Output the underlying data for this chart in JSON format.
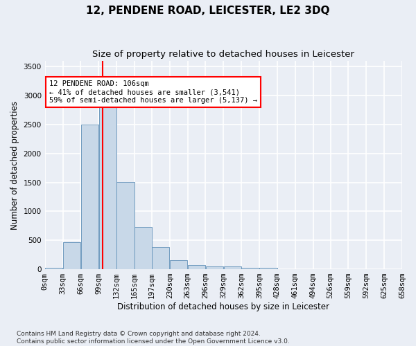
{
  "title": "12, PENDENE ROAD, LEICESTER, LE2 3DQ",
  "subtitle": "Size of property relative to detached houses in Leicester",
  "xlabel": "Distribution of detached houses by size in Leicester",
  "ylabel": "Number of detached properties",
  "footer_line1": "Contains HM Land Registry data © Crown copyright and database right 2024.",
  "footer_line2": "Contains public sector information licensed under the Open Government Licence v3.0.",
  "bar_bins": [
    0,
    33,
    66,
    99,
    132,
    165,
    197,
    230,
    263,
    296,
    329,
    362,
    395,
    428,
    461,
    494,
    526,
    559,
    592,
    625,
    658
  ],
  "bar_labels": [
    "0sqm",
    "33sqm",
    "66sqm",
    "99sqm",
    "132sqm",
    "165sqm",
    "197sqm",
    "230sqm",
    "263sqm",
    "296sqm",
    "329sqm",
    "362sqm",
    "395sqm",
    "428sqm",
    "461sqm",
    "494sqm",
    "526sqm",
    "559sqm",
    "592sqm",
    "625sqm",
    "658sqm"
  ],
  "bar_values": [
    20,
    470,
    2500,
    2820,
    1510,
    730,
    380,
    155,
    70,
    50,
    45,
    30,
    20,
    5,
    5,
    5,
    3,
    2,
    2,
    1
  ],
  "bar_color": "#c8d8e8",
  "bar_edge_color": "#6090b8",
  "vline_x": 106,
  "vline_color": "red",
  "annotation_text": "12 PENDENE ROAD: 106sqm\n← 41% of detached houses are smaller (3,541)\n59% of semi-detached houses are larger (5,137) →",
  "annotation_box_color": "white",
  "annotation_box_edge": "red",
  "ylim": [
    0,
    3600
  ],
  "yticks": [
    0,
    500,
    1000,
    1500,
    2000,
    2500,
    3000,
    3500
  ],
  "bg_color": "#eaeef5",
  "plot_bg_color": "#eaeef5",
  "grid_color": "white",
  "title_fontsize": 11,
  "subtitle_fontsize": 9.5,
  "axis_label_fontsize": 8.5,
  "tick_fontsize": 7.5,
  "footer_fontsize": 6.5
}
